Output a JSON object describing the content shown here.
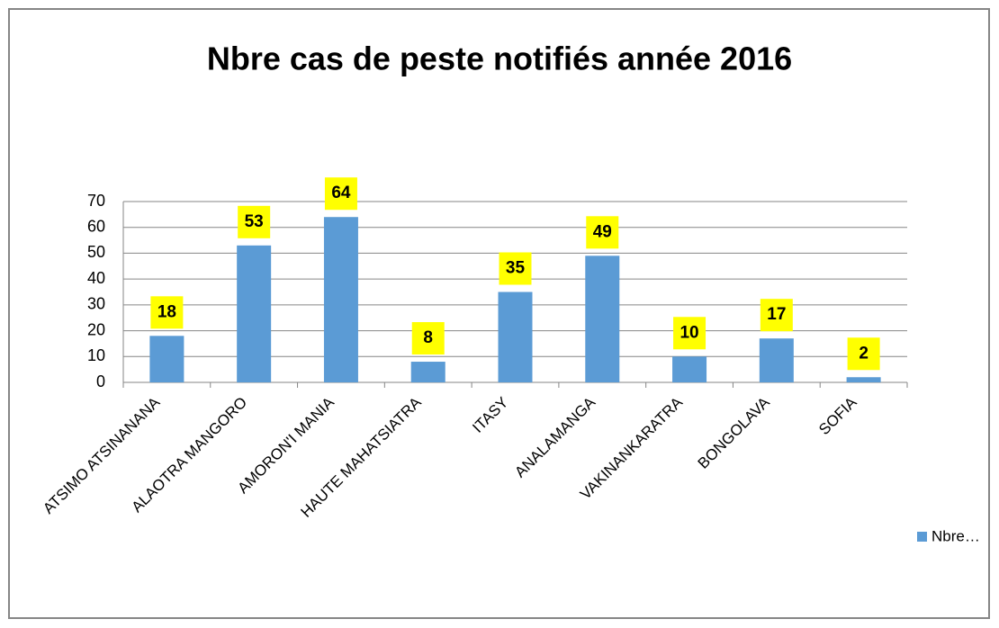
{
  "chart_data": {
    "type": "bar",
    "title": "Nbre cas de peste notifiés année 2016",
    "categories": [
      "ATSIMO ATSINANANA",
      "ALAOTRA MANGORO",
      "AMORON'I MANIA",
      "HAUTE MAHATSIATRA",
      "ITASY",
      "ANALAMANGA",
      "VAKINANKARATRA",
      "BONGOLAVA",
      "SOFIA"
    ],
    "series": [
      {
        "name": "Nbre…",
        "color": "#5b9bd5",
        "values": [
          18,
          53,
          64,
          8,
          35,
          49,
          10,
          17,
          2
        ]
      }
    ],
    "ylim": [
      0,
      70
    ],
    "yticks": [
      0,
      10,
      20,
      30,
      40,
      50,
      60,
      70
    ],
    "grid": true,
    "legend": "right"
  }
}
